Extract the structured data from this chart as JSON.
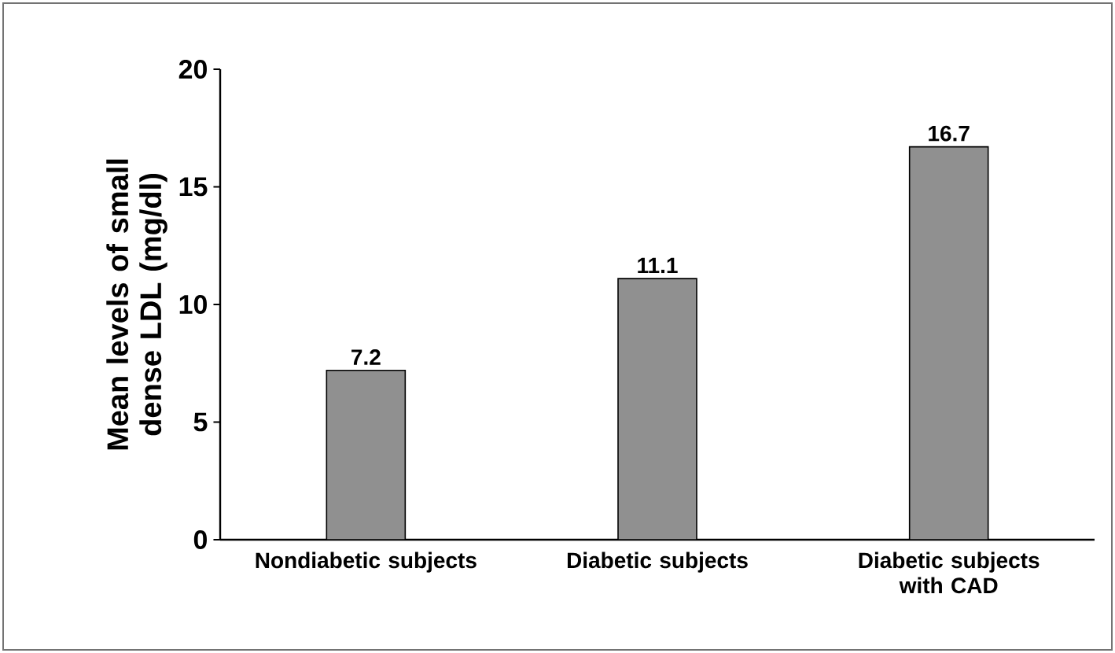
{
  "chart_data": {
    "type": "bar",
    "ylabel": "Mean levels of small dense LDL (mg/dl)",
    "categories": [
      "Nondiabetic subjects",
      "Diabetic subjects",
      "Diabetic subjects with CAD"
    ],
    "values": [
      7.2,
      11.1,
      16.7
    ],
    "color": "#909090",
    "ylim": [
      0,
      20
    ],
    "yticks": [
      0,
      5,
      10,
      15,
      20
    ],
    "data_labels": true,
    "grid": false
  }
}
